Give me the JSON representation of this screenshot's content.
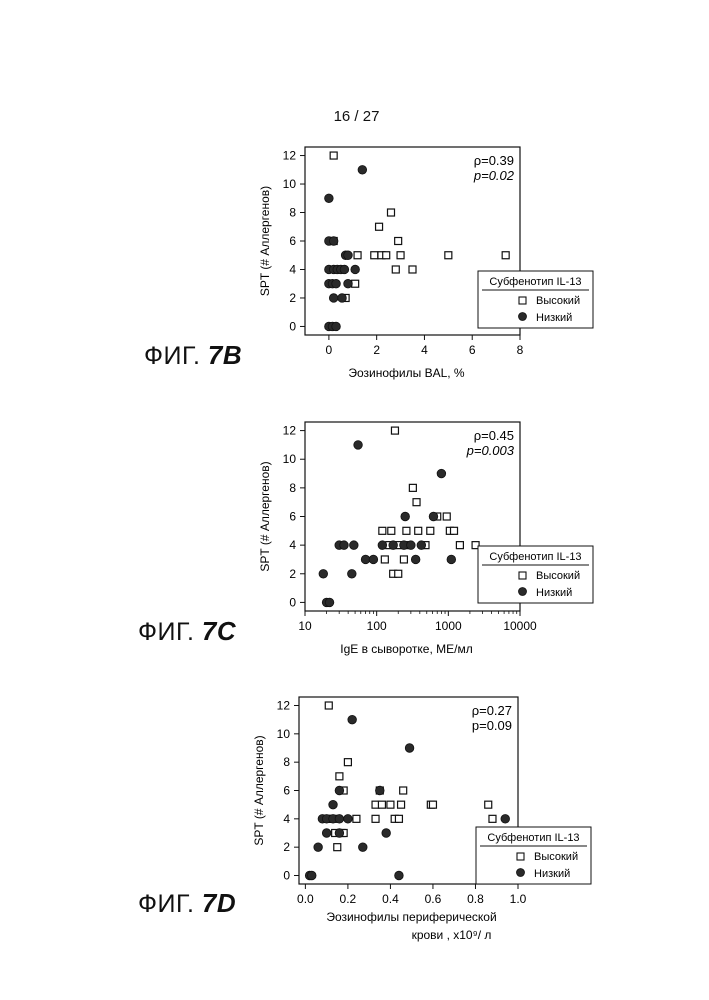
{
  "page_number": "16 / 27",
  "legend": {
    "title": "Субфенотип IL-13",
    "high": "Высокий",
    "low": "Низкий"
  },
  "chart_data": [
    {
      "type": "scatter",
      "figure_prefix": "ФИГ. ",
      "figure_letter": "7B",
      "xlabel": "Эозинофилы BAL, %",
      "ylabel": "SPT (# Аллергенов)",
      "xlim": [
        -1,
        8
      ],
      "ylim": [
        -0.6,
        12.6
      ],
      "x_scale": "linear",
      "x_ticks": [
        "0",
        "2",
        "4",
        "6",
        "8"
      ],
      "y_ticks": [
        "0",
        "2",
        "4",
        "6",
        "8",
        "10",
        "12"
      ],
      "rho": "ρ=0.39",
      "p": "p=0.02",
      "legend_position": "bottom-right",
      "series": [
        {
          "name": "Высокий",
          "marker": "square",
          "points": [
            [
              0.2,
              12
            ],
            [
              0.2,
              6
            ],
            [
              1.2,
              5
            ],
            [
              1.1,
              3
            ],
            [
              1.9,
              5
            ],
            [
              2.1,
              7
            ],
            [
              2.2,
              5
            ],
            [
              2.4,
              5
            ],
            [
              2.6,
              8
            ],
            [
              2.8,
              4
            ],
            [
              2.9,
              6
            ],
            [
              3.0,
              5
            ],
            [
              3.5,
              4
            ],
            [
              5.0,
              5
            ],
            [
              7.4,
              5
            ],
            [
              0.7,
              2
            ],
            [
              0.4,
              4
            ]
          ]
        },
        {
          "name": "Низкий",
          "marker": "circle",
          "points": [
            [
              1.4,
              11
            ],
            [
              0.0,
              9
            ],
            [
              0.0,
              6
            ],
            [
              0.2,
              6
            ],
            [
              0.7,
              5
            ],
            [
              0.8,
              5
            ],
            [
              0.0,
              4
            ],
            [
              0.2,
              4
            ],
            [
              0.35,
              4
            ],
            [
              0.5,
              4
            ],
            [
              0.65,
              4
            ],
            [
              1.1,
              4
            ],
            [
              0.0,
              3
            ],
            [
              0.15,
              3
            ],
            [
              0.3,
              3
            ],
            [
              0.8,
              3
            ],
            [
              0.2,
              2
            ],
            [
              0.55,
              2
            ],
            [
              0.0,
              0
            ],
            [
              0.15,
              0
            ],
            [
              0.3,
              0
            ]
          ]
        }
      ]
    },
    {
      "type": "scatter",
      "figure_prefix": "ФИГ. ",
      "figure_letter": "7C",
      "xlabel": "IgE в сыворотке, МЕ/мл",
      "ylabel": "SPT (# Аллергенов)",
      "xlim": [
        10,
        10000
      ],
      "ylim": [
        -0.6,
        12.6
      ],
      "x_scale": "log",
      "x_ticks": [
        "10",
        "100",
        "1000",
        "10000"
      ],
      "y_ticks": [
        "0",
        "2",
        "4",
        "6",
        "8",
        "10",
        "12"
      ],
      "rho": "ρ=0.45",
      "p": "p=0.003",
      "legend_position": "bottom-right",
      "series": [
        {
          "name": "Высокий",
          "marker": "square",
          "points": [
            [
              180,
              12
            ],
            [
              320,
              8
            ],
            [
              360,
              7
            ],
            [
              700,
              6
            ],
            [
              950,
              6
            ],
            [
              120,
              5
            ],
            [
              160,
              5
            ],
            [
              260,
              5
            ],
            [
              380,
              5
            ],
            [
              560,
              5
            ],
            [
              1050,
              5
            ],
            [
              1200,
              5
            ],
            [
              150,
              4
            ],
            [
              200,
              4
            ],
            [
              280,
              4
            ],
            [
              480,
              4
            ],
            [
              1450,
              4
            ],
            [
              2400,
              4
            ],
            [
              130,
              3
            ],
            [
              240,
              3
            ],
            [
              170,
              2
            ],
            [
              200,
              2
            ]
          ]
        },
        {
          "name": "Низкий",
          "marker": "circle",
          "points": [
            [
              55,
              11
            ],
            [
              800,
              9
            ],
            [
              250,
              6
            ],
            [
              620,
              6
            ],
            [
              30,
              4
            ],
            [
              35,
              4
            ],
            [
              48,
              4
            ],
            [
              120,
              4
            ],
            [
              170,
              4
            ],
            [
              240,
              4
            ],
            [
              300,
              4
            ],
            [
              420,
              4
            ],
            [
              70,
              3
            ],
            [
              90,
              3
            ],
            [
              350,
              3
            ],
            [
              1100,
              3
            ],
            [
              18,
              2
            ],
            [
              45,
              2
            ],
            [
              20,
              0
            ],
            [
              22,
              0
            ]
          ]
        }
      ]
    },
    {
      "type": "scatter",
      "figure_prefix": "ФИГ. ",
      "figure_letter": "7D",
      "xlabel": "Эозинофилы периферической",
      "xlabel2": "крови",
      "xlabel_unit": ", x10⁹/ л",
      "ylabel": "SPT (# Аллергенов)",
      "xlim": [
        -0.03,
        1.0
      ],
      "ylim": [
        -0.6,
        12.6
      ],
      "x_scale": "linear",
      "x_ticks": [
        "0.0",
        "0.2",
        "0.4",
        "0.6",
        "0.8",
        "1.0"
      ],
      "y_ticks": [
        "0",
        "2",
        "4",
        "6",
        "8",
        "10",
        "12"
      ],
      "rho": "ρ=0.27",
      "p": "p=0.09",
      "legend_position": "bottom-right",
      "series": [
        {
          "name": "Высокий",
          "marker": "square",
          "points": [
            [
              0.11,
              12
            ],
            [
              0.2,
              8
            ],
            [
              0.16,
              7
            ],
            [
              0.18,
              6
            ],
            [
              0.35,
              6
            ],
            [
              0.46,
              6
            ],
            [
              0.33,
              5
            ],
            [
              0.36,
              5
            ],
            [
              0.4,
              5
            ],
            [
              0.45,
              5
            ],
            [
              0.59,
              5
            ],
            [
              0.6,
              5
            ],
            [
              0.86,
              5
            ],
            [
              0.1,
              4
            ],
            [
              0.12,
              4
            ],
            [
              0.15,
              4
            ],
            [
              0.24,
              4
            ],
            [
              0.33,
              4
            ],
            [
              0.42,
              4
            ],
            [
              0.44,
              4
            ],
            [
              0.88,
              4
            ],
            [
              0.14,
              3
            ],
            [
              0.17,
              3
            ],
            [
              0.18,
              3
            ],
            [
              0.15,
              2
            ]
          ]
        },
        {
          "name": "Низкий",
          "marker": "circle",
          "points": [
            [
              0.22,
              11
            ],
            [
              0.49,
              9
            ],
            [
              0.16,
              6
            ],
            [
              0.35,
              6
            ],
            [
              0.13,
              5
            ],
            [
              0.08,
              4
            ],
            [
              0.1,
              4
            ],
            [
              0.13,
              4
            ],
            [
              0.16,
              4
            ],
            [
              0.2,
              4
            ],
            [
              0.94,
              4
            ],
            [
              0.1,
              3
            ],
            [
              0.16,
              3
            ],
            [
              0.38,
              3
            ],
            [
              0.06,
              2
            ],
            [
              0.27,
              2
            ],
            [
              0.02,
              0
            ],
            [
              0.03,
              0
            ],
            [
              0.44,
              0
            ]
          ]
        }
      ]
    }
  ]
}
